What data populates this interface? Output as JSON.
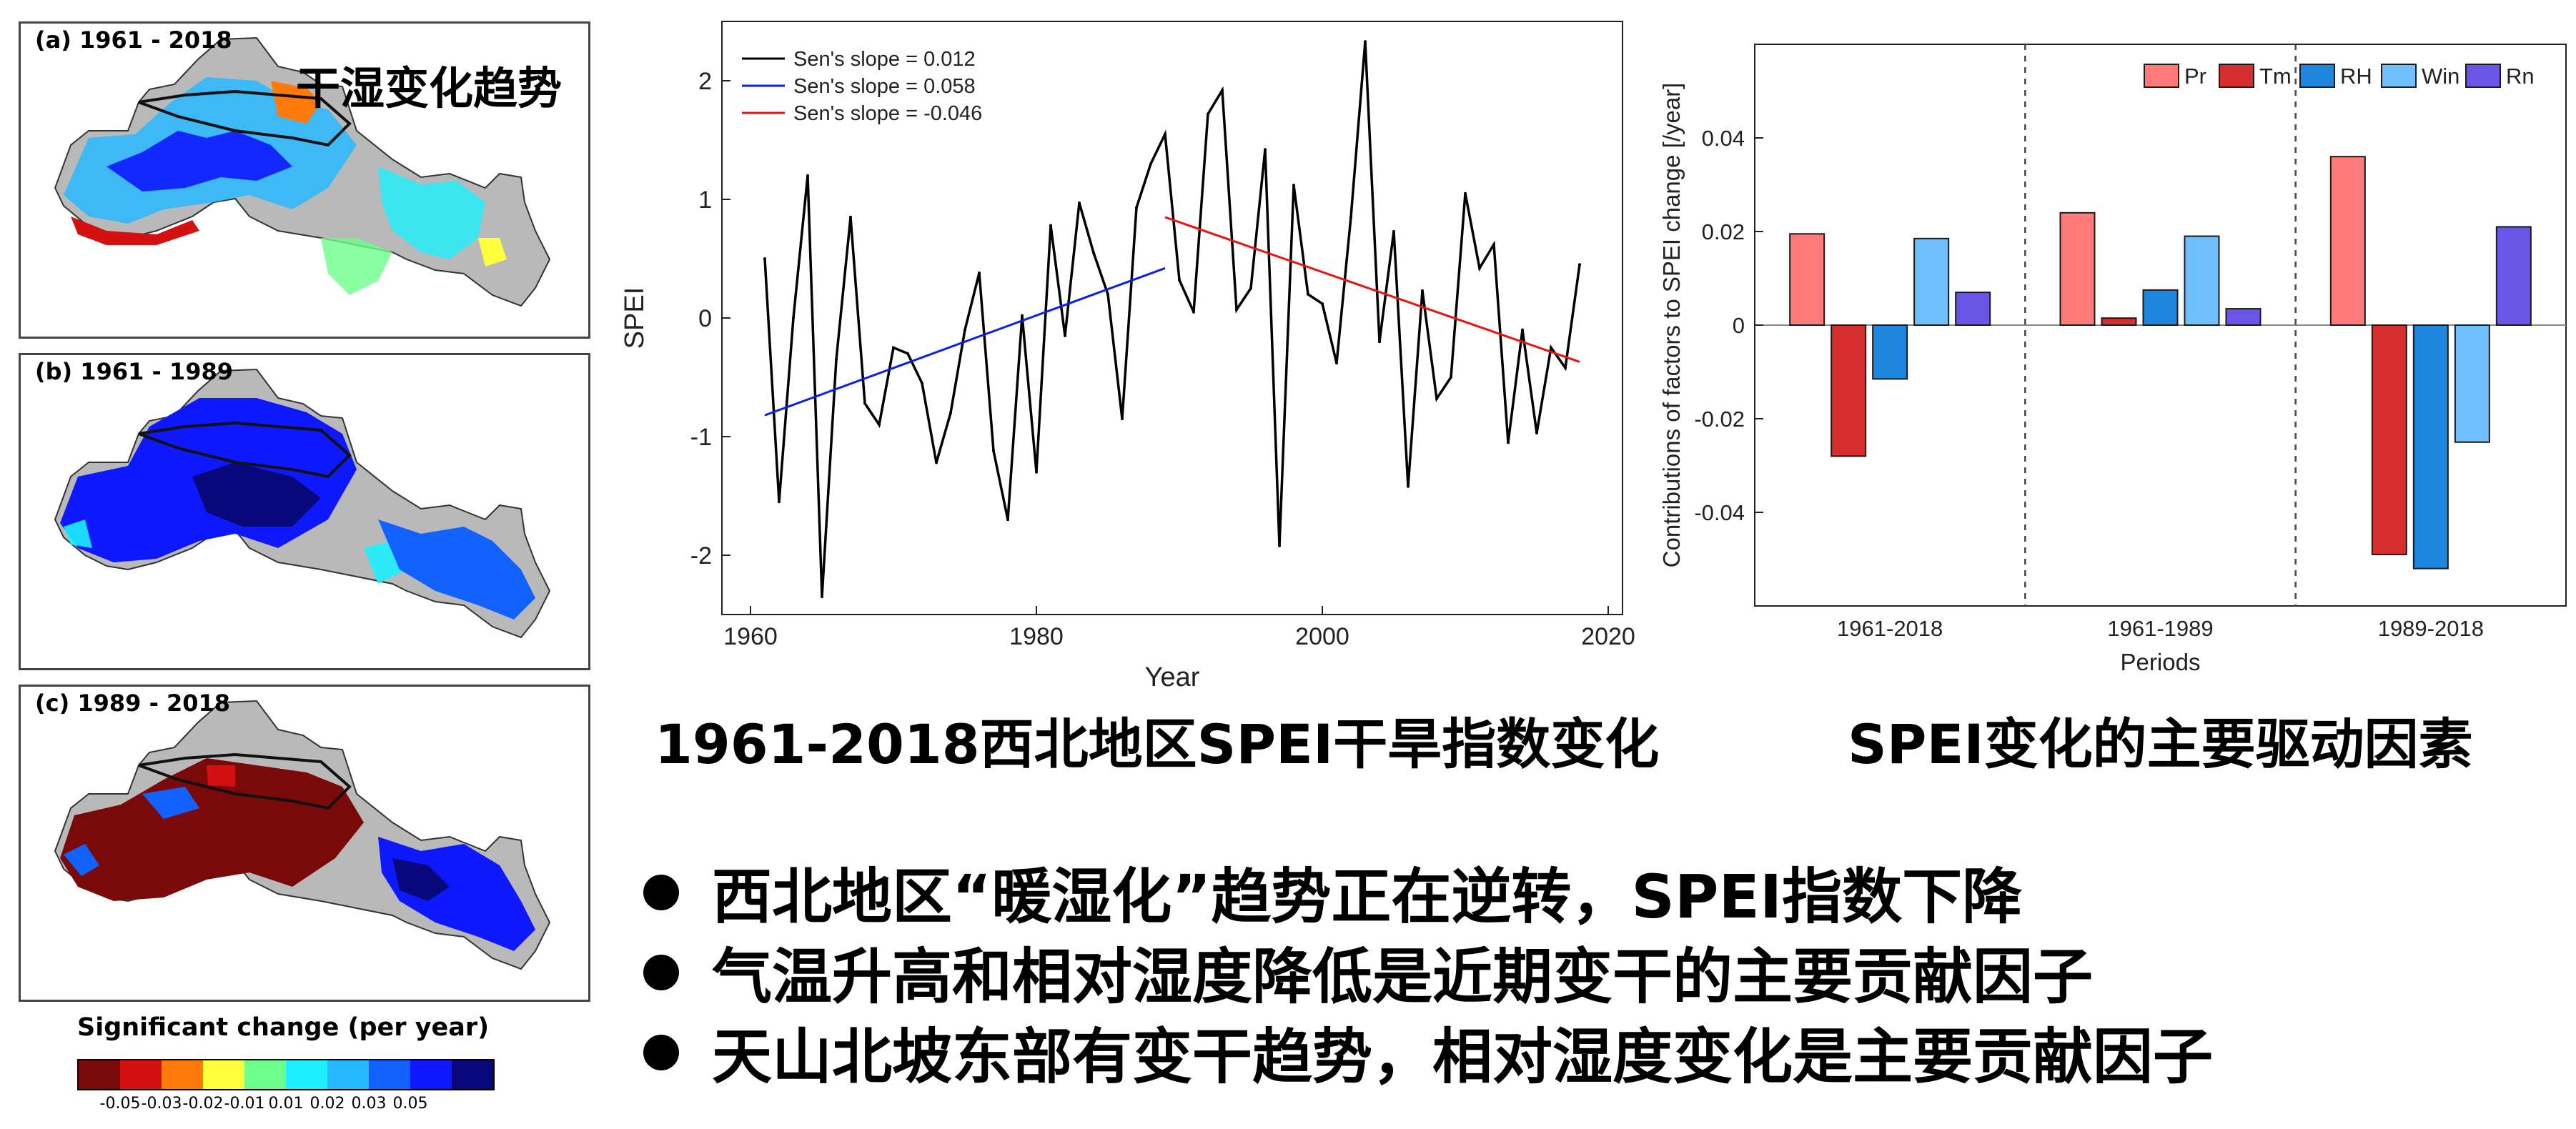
{
  "colors": {
    "colorbar": [
      "#7a0a0a",
      "#d41010",
      "#ff7a0a",
      "#ffff3c",
      "#6dff8a",
      "#1ef0ff",
      "#27b9ff",
      "#1262ff",
      "#0e18ff",
      "#08087a"
    ],
    "map_gray": "#b9b9b9",
    "series": {
      "annual": "#000000",
      "early_trend": "#0d1ee6",
      "late_trend": "#e61414"
    },
    "bars": {
      "Pr": "#ff7a7a",
      "Tm": "#d62e2e",
      "RH": "#1f86e0",
      "Win": "#6fc0ff",
      "Rn": "#6a56e6"
    }
  },
  "maps": {
    "title": "干湿变化趋势",
    "panels": [
      {
        "label": "(a) 1961 - 2018"
      },
      {
        "label": "(b) 1961 - 1989"
      },
      {
        "label": "(c) 1989 - 2018"
      }
    ],
    "legend_title": "Significant change (per year)",
    "legend_ticks": [
      "-0.05",
      "-0.03",
      "-0.02",
      "-0.01",
      "0.01",
      "0.02",
      "0.03",
      "0.05"
    ]
  },
  "chart_data": [
    {
      "type": "line",
      "title": "",
      "xlabel": "Year",
      "ylabel": "SPEI",
      "xlim": [
        1958,
        2021
      ],
      "ylim": [
        -2.5,
        2.5
      ],
      "xticks": [
        "1960",
        "1980",
        "2000",
        "2020"
      ],
      "yticks": [
        "-2",
        "-1",
        "0",
        "1",
        "2"
      ],
      "legend_position": "top-left",
      "x": [
        1961,
        1962,
        1963,
        1964,
        1965,
        1966,
        1967,
        1968,
        1969,
        1970,
        1971,
        1972,
        1973,
        1974,
        1975,
        1976,
        1977,
        1978,
        1979,
        1980,
        1981,
        1982,
        1983,
        1984,
        1985,
        1986,
        1987,
        1988,
        1989,
        1990,
        1991,
        1992,
        1993,
        1994,
        1995,
        1996,
        1997,
        1998,
        1999,
        2000,
        2001,
        2002,
        2003,
        2004,
        2005,
        2006,
        2007,
        2008,
        2009,
        2010,
        2011,
        2012,
        2013,
        2014,
        2015,
        2016,
        2017,
        2018
      ],
      "series": [
        {
          "name": "Sen's slope = 0.012",
          "values": [
            0.5,
            -1.55,
            0.0,
            1.2,
            -2.35,
            -0.35,
            0.85,
            -0.72,
            -0.9,
            -0.25,
            -0.3,
            -0.55,
            -1.22,
            -0.8,
            -0.1,
            0.38,
            -1.12,
            -1.7,
            0.02,
            -1.3,
            0.78,
            -0.15,
            0.97,
            0.55,
            0.2,
            -0.85,
            0.93,
            1.3,
            1.55,
            0.32,
            0.05,
            1.72,
            1.92,
            0.07,
            0.25,
            1.42,
            -1.92,
            1.12,
            0.2,
            0.12,
            -0.38,
            0.85,
            2.33,
            -0.2,
            0.73,
            -1.42,
            0.23,
            -0.68,
            -0.5,
            1.05,
            0.42,
            0.62,
            -1.05,
            -0.1,
            -0.97,
            -0.25,
            -0.42,
            0.45
          ]
        },
        {
          "name": "Sen's slope = 0.058",
          "x": [
            1961,
            1989
          ],
          "values": [
            -0.82,
            0.42
          ]
        },
        {
          "name": "Sen's slope = -0.046",
          "x": [
            1989,
            2018
          ],
          "values": [
            0.85,
            -0.37
          ]
        }
      ]
    },
    {
      "type": "bar",
      "xlabel": "Periods",
      "ylabel": "Contributions of factors to SPEI change [/year]",
      "ylim": [
        -0.06,
        0.06
      ],
      "yticks": [
        "-0.04",
        "-0.02",
        "0",
        "0.02",
        "0.04"
      ],
      "categories": [
        "1961-2018",
        "1961-1989",
        "1989-2018"
      ],
      "legend_position": "top-right",
      "series": [
        {
          "name": "Pr",
          "values": [
            0.0195,
            0.024,
            0.036
          ]
        },
        {
          "name": "Tm",
          "values": [
            -0.028,
            0.0015,
            -0.049
          ]
        },
        {
          "name": "RH",
          "values": [
            -0.0115,
            0.0075,
            -0.052
          ]
        },
        {
          "name": "Win",
          "values": [
            0.0185,
            0.019,
            -0.025
          ]
        },
        {
          "name": "Rn",
          "values": [
            0.007,
            0.0035,
            0.021
          ]
        }
      ]
    }
  ],
  "captions": {
    "line_chart": "1961-2018西北地区SPEI干旱指数变化",
    "bar_chart": "SPEI变化的主要驱动因素"
  },
  "bullets": [
    "西北地区“暖湿化”趋势正在逆转，SPEI指数下降",
    "气温升高和相对湿度降低是近期变干的主要贡献因子",
    "天山北坡东部有变干趋势，相对湿度变化是主要贡献因子"
  ]
}
